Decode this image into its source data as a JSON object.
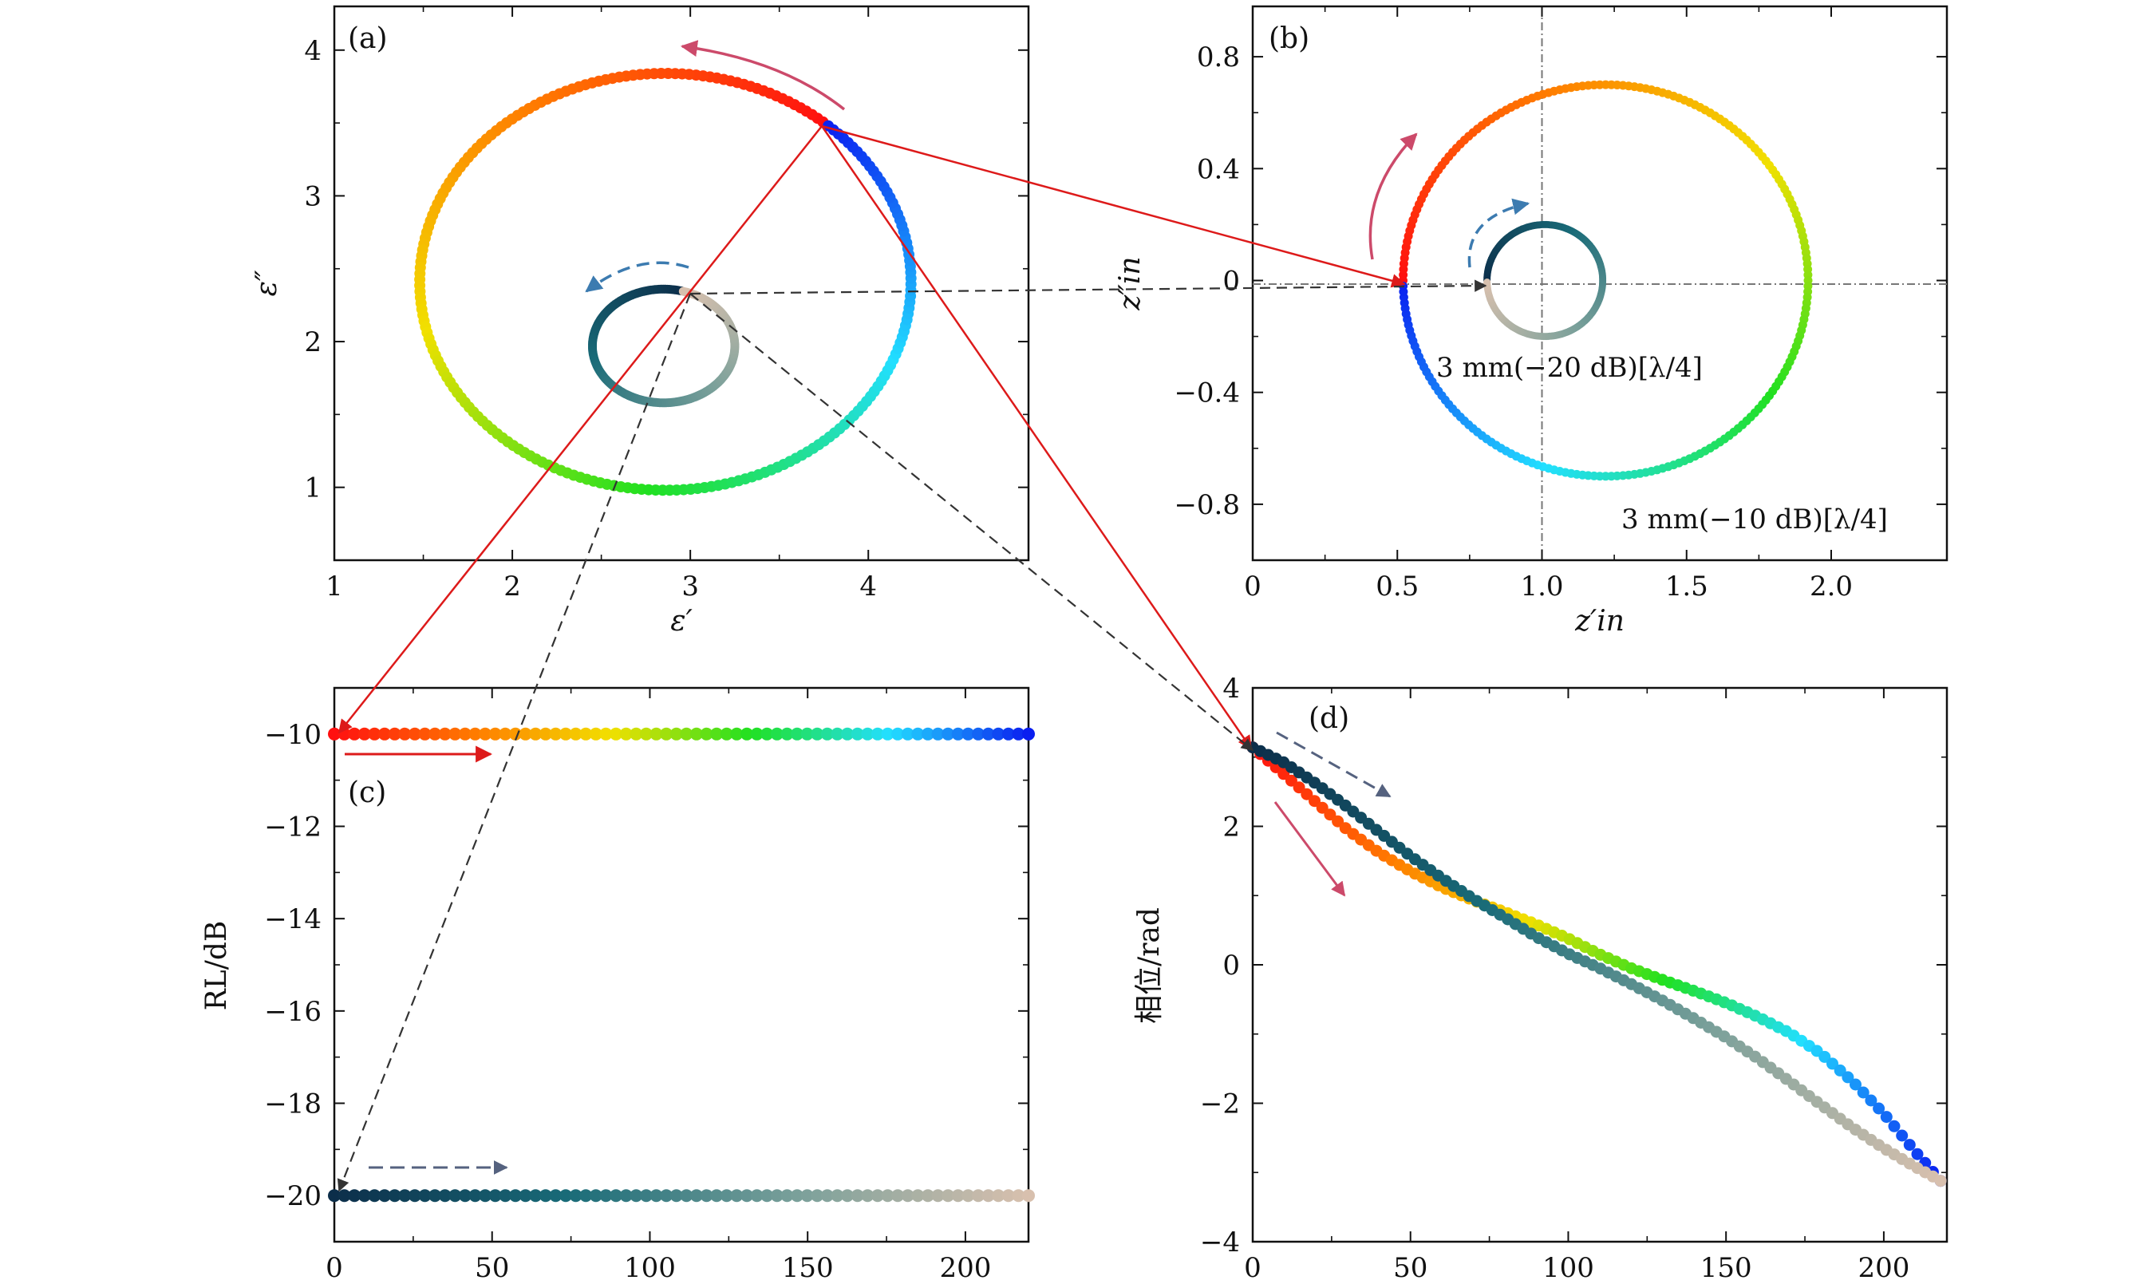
{
  "chart_data": [
    {
      "panel": "(a)",
      "type": "scatter",
      "xlabel": "ε′",
      "ylabel": "ε″",
      "xlim": [
        1,
        4.9
      ],
      "ylim": [
        0.5,
        4.3
      ],
      "xticks": [
        "1",
        "2",
        "3",
        "4"
      ],
      "yticks": [
        "1",
        "2",
        "3",
        "4"
      ],
      "series": [
        {
          "curve": "ellipse",
          "center": [
            2.86,
            2.41
          ],
          "radius": [
            1.38,
            1.43
          ],
          "start_point": [
            3.74,
            3.5
          ],
          "direction": "counter-clockwise",
          "coloring": "rainbow",
          "points": 220
        },
        {
          "curve": "ellipse",
          "center": [
            2.85,
            1.97
          ],
          "radius": [
            0.4,
            0.39
          ],
          "start_point": [
            2.95,
            2.35
          ],
          "direction": "counter-clockwise",
          "coloring": "dark-teal-to-beige",
          "points": 220
        }
      ]
    },
    {
      "panel": "(b)",
      "type": "scatter",
      "xlabel": "z′in",
      "ylabel": "z″in",
      "xlim": [
        0,
        2.4
      ],
      "ylim": [
        -1.0,
        0.98
      ],
      "xticks": [
        "0",
        "0.5",
        "1.0",
        "1.5",
        "2.0"
      ],
      "yticks": [
        "0.8",
        "0.4",
        "0",
        "−0.4",
        "−0.8"
      ],
      "reference_lines": {
        "x": 1.0,
        "y": 0
      },
      "annotations": [
        "3 mm(−20 dB)[λ/4]",
        "3 mm(−10 dB)[λ/4]"
      ],
      "series": [
        {
          "curve": "circle",
          "center": [
            1.22,
            0
          ],
          "radius": 0.7,
          "start_point": [
            0.52,
            0
          ],
          "direction": "clockwise",
          "coloring": "rainbow",
          "points": 220
        },
        {
          "curve": "circle",
          "center": [
            1.01,
            0
          ],
          "radius": 0.2,
          "start_point": [
            0.81,
            0
          ],
          "direction": "clockwise",
          "coloring": "dark-teal-to-beige",
          "points": 220
        }
      ]
    },
    {
      "panel": "(c)",
      "type": "scatter",
      "xlabel": "",
      "ylabel": "RL/dB",
      "xlim": [
        0,
        220
      ],
      "ylim": [
        -21,
        -9
      ],
      "xticks": [
        "0",
        "50",
        "100",
        "150",
        "200"
      ],
      "yticks": [
        "−10",
        "−12",
        "−14",
        "−16",
        "−18",
        "−20"
      ],
      "series": [
        {
          "x_range": [
            0,
            220
          ],
          "value": -10,
          "coloring": "rainbow",
          "points": 70
        },
        {
          "x_range": [
            0,
            220
          ],
          "value": -20,
          "coloring": "dark-teal-to-beige",
          "points": 70
        }
      ]
    },
    {
      "panel": "(d)",
      "type": "scatter",
      "xlabel": "",
      "ylabel": "相位/rad",
      "xlim": [
        0,
        220
      ],
      "ylim": [
        -4,
        4
      ],
      "xticks": [
        "0",
        "50",
        "100",
        "150",
        "200"
      ],
      "yticks": [
        "4",
        "2",
        "0",
        "−2",
        "−4"
      ],
      "series": [
        {
          "x": [
            0,
            10,
            20,
            30,
            40,
            50,
            60,
            70,
            80,
            90,
            100,
            110,
            120,
            130,
            140,
            150,
            160,
            170,
            180,
            190,
            200,
            210,
            218
          ],
          "y": [
            3.14,
            2.75,
            2.35,
            1.95,
            1.62,
            1.35,
            1.12,
            0.93,
            0.76,
            0.58,
            0.38,
            0.15,
            -0.05,
            -0.22,
            -0.38,
            -0.55,
            -0.75,
            -0.98,
            -1.28,
            -1.68,
            -2.15,
            -2.7,
            -3.12
          ],
          "coloring": "rainbow"
        },
        {
          "x": [
            0,
            10,
            20,
            30,
            40,
            50,
            60,
            70,
            80,
            90,
            100,
            110,
            120,
            130,
            140,
            150,
            160,
            170,
            180,
            190,
            200,
            210,
            218
          ],
          "y": [
            3.14,
            2.92,
            2.62,
            2.28,
            1.92,
            1.57,
            1.25,
            0.95,
            0.68,
            0.4,
            0.16,
            -0.05,
            -0.28,
            -0.52,
            -0.78,
            -1.05,
            -1.35,
            -1.68,
            -2.02,
            -2.35,
            -2.65,
            -2.92,
            -3.12
          ],
          "coloring": "dark-teal-to-beige"
        }
      ]
    }
  ],
  "colors": {
    "guide_red": "#dd1a1a",
    "guide_dash": "#333333",
    "arrow_pink": "#cc4a6a",
    "arrow_blue": "#3c7bb0",
    "arrow_slate": "#55627f",
    "rainbow": [
      "#ff1010",
      "#ff7a00",
      "#f1e000",
      "#21e021",
      "#22dfff",
      "#0a1ef0"
    ],
    "teal_beige": [
      "#0c2e4a",
      "#196b78",
      "#7aa09a",
      "#d8c0ae"
    ]
  }
}
